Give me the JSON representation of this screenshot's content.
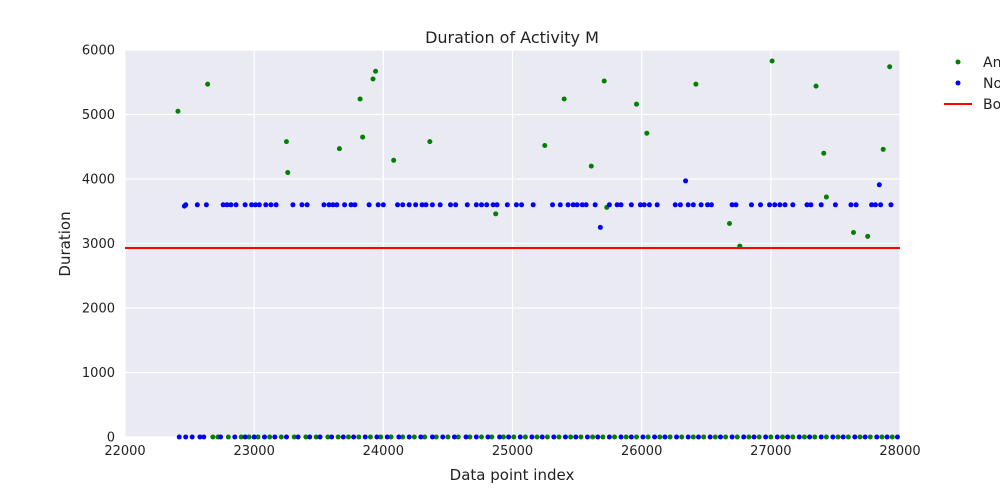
{
  "chart_data": {
    "type": "scatter",
    "title": "Duration of Activity M",
    "xlabel": "Data point index",
    "ylabel": "Duration",
    "xlim": [
      22000,
      28000
    ],
    "ylim": [
      0,
      6000
    ],
    "x_ticks": [
      "22000",
      "23000",
      "24000",
      "25000",
      "26000",
      "27000",
      "28000"
    ],
    "y_ticks": [
      "0",
      "1000",
      "2000",
      "3000",
      "4000",
      "5000",
      "6000"
    ],
    "grid": true,
    "legend_position": "outside-right",
    "legend": [
      {
        "label": "An",
        "type": "point",
        "color": "#008000"
      },
      {
        "label": "No",
        "type": "point",
        "color": "#0000ff"
      },
      {
        "label": "Bo",
        "type": "line",
        "color": "#ff0000"
      }
    ],
    "boundary": {
      "y": 2930,
      "color": "#ff0000"
    },
    "series": [
      {
        "name": "An",
        "color": "#008000",
        "points": [
          [
            22410,
            5050
          ],
          [
            22640,
            5470
          ],
          [
            23250,
            4580
          ],
          [
            23260,
            4100
          ],
          [
            23660,
            4470
          ],
          [
            23820,
            5240
          ],
          [
            23840,
            4650
          ],
          [
            23920,
            5550
          ],
          [
            23940,
            5670
          ],
          [
            24080,
            4290
          ],
          [
            24360,
            4580
          ],
          [
            24870,
            3460
          ],
          [
            25250,
            4520
          ],
          [
            25400,
            5240
          ],
          [
            25610,
            4200
          ],
          [
            25710,
            5520
          ],
          [
            25730,
            3560
          ],
          [
            25960,
            5160
          ],
          [
            26040,
            4710
          ],
          [
            26420,
            5470
          ],
          [
            26680,
            3310
          ],
          [
            26760,
            2960
          ],
          [
            27010,
            5830
          ],
          [
            27350,
            5440
          ],
          [
            27410,
            4400
          ],
          [
            27430,
            3720
          ],
          [
            27640,
            3170
          ],
          [
            27750,
            3110
          ],
          [
            27870,
            4460
          ],
          [
            27920,
            5740
          ],
          [
            22680,
            0
          ],
          [
            22720,
            0
          ],
          [
            22800,
            0
          ],
          [
            22900,
            0
          ],
          [
            22960,
            0
          ],
          [
            23030,
            0
          ],
          [
            23120,
            0
          ],
          [
            23210,
            0
          ],
          [
            23310,
            0
          ],
          [
            23400,
            0
          ],
          [
            23480,
            0
          ],
          [
            23570,
            0
          ],
          [
            23650,
            0
          ],
          [
            23730,
            0
          ],
          [
            23810,
            0
          ],
          [
            23900,
            0
          ],
          [
            23980,
            0
          ],
          [
            24060,
            0
          ],
          [
            24150,
            0
          ],
          [
            24240,
            0
          ],
          [
            24320,
            0
          ],
          [
            24410,
            0
          ],
          [
            24500,
            0
          ],
          [
            24580,
            0
          ],
          [
            24670,
            0
          ],
          [
            24760,
            0
          ],
          [
            24840,
            0
          ],
          [
            24930,
            0
          ],
          [
            25010,
            0
          ],
          [
            25100,
            0
          ],
          [
            25190,
            0
          ],
          [
            25270,
            0
          ],
          [
            25360,
            0
          ],
          [
            25450,
            0
          ],
          [
            25530,
            0
          ],
          [
            25620,
            0
          ],
          [
            25700,
            0
          ],
          [
            25790,
            0
          ],
          [
            25880,
            0
          ],
          [
            25960,
            0
          ],
          [
            26050,
            0
          ],
          [
            26140,
            0
          ],
          [
            26220,
            0
          ],
          [
            26310,
            0
          ],
          [
            26400,
            0
          ],
          [
            26480,
            0
          ],
          [
            26570,
            0
          ],
          [
            26650,
            0
          ],
          [
            26740,
            0
          ],
          [
            26830,
            0
          ],
          [
            26910,
            0
          ],
          [
            27000,
            0
          ],
          [
            27090,
            0
          ],
          [
            27170,
            0
          ],
          [
            27260,
            0
          ],
          [
            27340,
            0
          ],
          [
            27430,
            0
          ],
          [
            27520,
            0
          ],
          [
            27600,
            0
          ],
          [
            27690,
            0
          ],
          [
            27770,
            0
          ],
          [
            27860,
            0
          ],
          [
            27940,
            0
          ]
        ]
      },
      {
        "name": "No",
        "color": "#0000ff",
        "points": [
          [
            22460,
            3580
          ],
          [
            22470,
            3600
          ],
          [
            22560,
            3600
          ],
          [
            22630,
            3600
          ],
          [
            22760,
            3600
          ],
          [
            22790,
            3600
          ],
          [
            22820,
            3600
          ],
          [
            22860,
            3600
          ],
          [
            22930,
            3600
          ],
          [
            22980,
            3600
          ],
          [
            23010,
            3600
          ],
          [
            23040,
            3600
          ],
          [
            23090,
            3600
          ],
          [
            23130,
            3600
          ],
          [
            23170,
            3600
          ],
          [
            23300,
            3600
          ],
          [
            23370,
            3600
          ],
          [
            23410,
            3600
          ],
          [
            23540,
            3600
          ],
          [
            23580,
            3600
          ],
          [
            23610,
            3600
          ],
          [
            23640,
            3600
          ],
          [
            23700,
            3600
          ],
          [
            23750,
            3600
          ],
          [
            23780,
            3600
          ],
          [
            23890,
            3600
          ],
          [
            23960,
            3600
          ],
          [
            24000,
            3600
          ],
          [
            24110,
            3600
          ],
          [
            24150,
            3600
          ],
          [
            24200,
            3600
          ],
          [
            24250,
            3600
          ],
          [
            24300,
            3600
          ],
          [
            24330,
            3600
          ],
          [
            24380,
            3600
          ],
          [
            24440,
            3600
          ],
          [
            24520,
            3600
          ],
          [
            24560,
            3600
          ],
          [
            24650,
            3600
          ],
          [
            24720,
            3600
          ],
          [
            24760,
            3600
          ],
          [
            24800,
            3600
          ],
          [
            24850,
            3600
          ],
          [
            24880,
            3600
          ],
          [
            24960,
            3600
          ],
          [
            25030,
            3600
          ],
          [
            25070,
            3600
          ],
          [
            25160,
            3600
          ],
          [
            25310,
            3600
          ],
          [
            25370,
            3600
          ],
          [
            25430,
            3600
          ],
          [
            25470,
            3600
          ],
          [
            25500,
            3600
          ],
          [
            25540,
            3600
          ],
          [
            25570,
            3600
          ],
          [
            25640,
            3600
          ],
          [
            25680,
            3250
          ],
          [
            25750,
            3600
          ],
          [
            25810,
            3600
          ],
          [
            25840,
            3600
          ],
          [
            25920,
            3600
          ],
          [
            25990,
            3600
          ],
          [
            26020,
            3600
          ],
          [
            26060,
            3600
          ],
          [
            26120,
            3600
          ],
          [
            26260,
            3600
          ],
          [
            26300,
            3600
          ],
          [
            26340,
            3970
          ],
          [
            26360,
            3600
          ],
          [
            26400,
            3600
          ],
          [
            26460,
            3600
          ],
          [
            26510,
            3600
          ],
          [
            26540,
            3600
          ],
          [
            26700,
            3600
          ],
          [
            26730,
            3600
          ],
          [
            26850,
            3600
          ],
          [
            26920,
            3600
          ],
          [
            26990,
            3600
          ],
          [
            27030,
            3600
          ],
          [
            27070,
            3600
          ],
          [
            27110,
            3600
          ],
          [
            27170,
            3600
          ],
          [
            27280,
            3600
          ],
          [
            27310,
            3600
          ],
          [
            27390,
            3600
          ],
          [
            27500,
            3600
          ],
          [
            27620,
            3600
          ],
          [
            27660,
            3600
          ],
          [
            27780,
            3600
          ],
          [
            27810,
            3600
          ],
          [
            27840,
            3910
          ],
          [
            27850,
            3600
          ],
          [
            27930,
            3600
          ],
          [
            22420,
            0
          ],
          [
            22470,
            0
          ],
          [
            22520,
            0
          ],
          [
            22580,
            0
          ],
          [
            22610,
            0
          ],
          [
            22740,
            0
          ],
          [
            22850,
            0
          ],
          [
            22930,
            0
          ],
          [
            23000,
            0
          ],
          [
            23080,
            0
          ],
          [
            23160,
            0
          ],
          [
            23250,
            0
          ],
          [
            23340,
            0
          ],
          [
            23430,
            0
          ],
          [
            23510,
            0
          ],
          [
            23600,
            0
          ],
          [
            23690,
            0
          ],
          [
            23770,
            0
          ],
          [
            23860,
            0
          ],
          [
            23950,
            0
          ],
          [
            24030,
            0
          ],
          [
            24120,
            0
          ],
          [
            24200,
            0
          ],
          [
            24290,
            0
          ],
          [
            24380,
            0
          ],
          [
            24460,
            0
          ],
          [
            24550,
            0
          ],
          [
            24640,
            0
          ],
          [
            24720,
            0
          ],
          [
            24810,
            0
          ],
          [
            24900,
            0
          ],
          [
            24970,
            0
          ],
          [
            25060,
            0
          ],
          [
            25150,
            0
          ],
          [
            25230,
            0
          ],
          [
            25320,
            0
          ],
          [
            25410,
            0
          ],
          [
            25490,
            0
          ],
          [
            25580,
            0
          ],
          [
            25660,
            0
          ],
          [
            25750,
            0
          ],
          [
            25840,
            0
          ],
          [
            25920,
            0
          ],
          [
            26010,
            0
          ],
          [
            26100,
            0
          ],
          [
            26180,
            0
          ],
          [
            26270,
            0
          ],
          [
            26360,
            0
          ],
          [
            26440,
            0
          ],
          [
            26530,
            0
          ],
          [
            26610,
            0
          ],
          [
            26700,
            0
          ],
          [
            26790,
            0
          ],
          [
            26870,
            0
          ],
          [
            26960,
            0
          ],
          [
            27050,
            0
          ],
          [
            27130,
            0
          ],
          [
            27220,
            0
          ],
          [
            27300,
            0
          ],
          [
            27390,
            0
          ],
          [
            27480,
            0
          ],
          [
            27560,
            0
          ],
          [
            27650,
            0
          ],
          [
            27730,
            0
          ],
          [
            27820,
            0
          ],
          [
            27900,
            0
          ],
          [
            27980,
            0
          ]
        ]
      }
    ]
  }
}
